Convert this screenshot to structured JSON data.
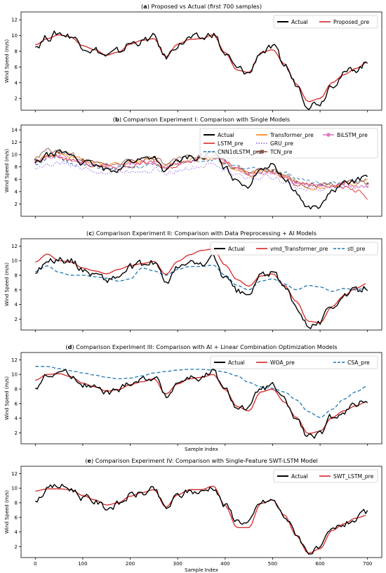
{
  "figure": {
    "xlabel": "Sample Index",
    "colors": {
      "actual": "#000000",
      "red": "#d62728",
      "blue": "#1f77b4",
      "orange": "#ff7f0e",
      "purple": "#8a5cf0",
      "brown": "#8c564b",
      "pink": "#e377c2"
    }
  },
  "chart_data": [
    {
      "type": "line",
      "title_prefix": "a",
      "title": "Proposed vs Actual (first 700 samples)",
      "xlabel": "",
      "ylabel": "Wind Speed (m/s)",
      "xlim": [
        -30,
        730
      ],
      "ylim": [
        0.5,
        13.0
      ],
      "yticks": [
        "2",
        "4",
        "6",
        "8",
        "10",
        "12"
      ],
      "legend_position": "upper right",
      "legend": [
        {
          "name": "Actual",
          "color": "#000000",
          "style": "solid"
        },
        {
          "name": "Proposed_pre",
          "color": "#d62728",
          "style": "solid"
        }
      ],
      "x": [
        0,
        25,
        50,
        75,
        100,
        125,
        150,
        175,
        200,
        225,
        250,
        275,
        300,
        325,
        350,
        375,
        400,
        425,
        450,
        475,
        500,
        525,
        550,
        575,
        600,
        625,
        650,
        675,
        700
      ],
      "series": [
        {
          "name": "Actual",
          "values": [
            8.6,
            9.8,
            10.3,
            10.0,
            8.8,
            8.2,
            7.4,
            7.8,
            9.0,
            9.3,
            9.7,
            7.2,
            8.9,
            9.6,
            9.5,
            10.3,
            7.6,
            5.7,
            5.2,
            8.0,
            8.3,
            6.2,
            3.8,
            1.4,
            1.6,
            4.0,
            5.1,
            5.8,
            6.5
          ]
        },
        {
          "name": "Proposed_pre",
          "values": [
            8.8,
            9.6,
            10.1,
            9.8,
            8.7,
            8.2,
            7.5,
            7.9,
            8.9,
            9.4,
            9.6,
            7.3,
            8.9,
            9.5,
            9.6,
            10.1,
            7.8,
            5.6,
            5.3,
            7.8,
            8.2,
            6.4,
            3.8,
            1.6,
            2.0,
            4.0,
            5.0,
            5.8,
            6.6
          ]
        }
      ]
    },
    {
      "type": "line",
      "title_prefix": "b",
      "title": "Comparison Experiment I: Comparison with Single Models",
      "xlabel": "",
      "ylabel": "Wind Speed (m/s)",
      "xlim": [
        -30,
        730
      ],
      "ylim": [
        0.0,
        14.8
      ],
      "yticks": [
        "2",
        "4",
        "6",
        "8",
        "10",
        "12",
        "14"
      ],
      "legend_position": "upper right",
      "legend": [
        {
          "name": "Actual",
          "color": "#000000",
          "style": "solid"
        },
        {
          "name": "LSTM_pre",
          "color": "#d62728",
          "style": "solid"
        },
        {
          "name": "CNN1dLSTM_pre",
          "color": "#1f77b4",
          "style": "dashed"
        },
        {
          "name": "Transformer_pre",
          "color": "#ff7f0e",
          "style": "solid"
        },
        {
          "name": "GRU_pre",
          "color": "#8a5cf0",
          "style": "dotted"
        },
        {
          "name": "TCN_pre",
          "color": "#8c564b",
          "style": "square"
        },
        {
          "name": "BiLSTM_pre",
          "color": "#e377c2",
          "style": "circle"
        }
      ],
      "x": [
        0,
        25,
        50,
        75,
        100,
        125,
        150,
        175,
        200,
        225,
        250,
        275,
        300,
        325,
        350,
        375,
        400,
        425,
        450,
        475,
        500,
        525,
        550,
        575,
        600,
        625,
        650,
        675,
        700
      ],
      "series": [
        {
          "name": "Actual",
          "values": [
            8.6,
            9.8,
            10.3,
            10.0,
            8.8,
            8.2,
            7.4,
            7.8,
            9.0,
            9.3,
            9.7,
            7.2,
            8.9,
            9.6,
            9.5,
            10.3,
            7.6,
            5.7,
            5.2,
            8.0,
            8.3,
            6.2,
            3.8,
            1.4,
            1.6,
            4.0,
            5.1,
            5.8,
            6.5
          ]
        },
        {
          "name": "LSTM_pre",
          "values": [
            8.9,
            9.5,
            9.6,
            9.2,
            8.6,
            8.3,
            7.8,
            7.8,
            8.3,
            8.6,
            8.7,
            7.6,
            8.3,
            9.2,
            9.6,
            9.8,
            8.8,
            7.6,
            7.0,
            7.3,
            7.2,
            6.2,
            5.2,
            5.0,
            5.0,
            5.0,
            4.8,
            4.2,
            3.0
          ]
        },
        {
          "name": "CNN1dLSTM_pre",
          "values": [
            8.6,
            9.4,
            9.2,
            8.8,
            8.2,
            7.9,
            7.7,
            7.6,
            7.8,
            8.0,
            8.2,
            7.9,
            8.4,
            8.9,
            9.2,
            9.3,
            8.6,
            7.8,
            7.4,
            7.5,
            7.5,
            6.9,
            6.0,
            5.6,
            5.5,
            5.6,
            5.6,
            5.7,
            5.9
          ]
        },
        {
          "name": "Transformer_pre",
          "values": [
            8.9,
            9.8,
            10.1,
            9.6,
            9.0,
            8.7,
            8.2,
            8.3,
            8.8,
            9.1,
            9.3,
            8.0,
            8.7,
            9.2,
            9.4,
            9.8,
            8.6,
            7.1,
            6.7,
            7.4,
            7.5,
            6.6,
            5.4,
            4.6,
            4.6,
            5.0,
            5.3,
            5.4,
            5.6
          ]
        },
        {
          "name": "GRU_pre",
          "values": [
            8.0,
            8.3,
            8.6,
            8.3,
            7.8,
            7.6,
            7.1,
            7.2,
            7.4,
            7.6,
            7.7,
            6.9,
            7.4,
            7.9,
            8.1,
            8.4,
            7.6,
            6.6,
            6.2,
            6.4,
            6.4,
            5.7,
            4.8,
            4.4,
            4.4,
            4.6,
            4.8,
            4.8,
            5.0
          ]
        },
        {
          "name": "TCN_pre",
          "values": [
            9.2,
            10.6,
            10.3,
            10.0,
            9.2,
            9.0,
            8.4,
            8.4,
            9.1,
            9.4,
            9.6,
            8.2,
            9.0,
            9.8,
            10.0,
            10.2,
            9.0,
            7.5,
            6.9,
            7.3,
            7.4,
            6.7,
            5.6,
            5.0,
            5.0,
            5.2,
            5.4,
            5.5,
            5.3
          ]
        },
        {
          "name": "BiLSTM_pre",
          "values": [
            8.7,
            9.6,
            9.7,
            9.3,
            8.7,
            8.4,
            8.0,
            8.0,
            8.5,
            8.8,
            8.9,
            7.9,
            8.5,
            9.4,
            9.8,
            9.9,
            8.9,
            7.5,
            6.9,
            7.0,
            7.0,
            6.3,
            5.4,
            5.0,
            5.0,
            5.2,
            5.2,
            5.0,
            4.8
          ]
        }
      ]
    },
    {
      "type": "line",
      "title_prefix": "c",
      "title": "Comparison Experiment II: Comparison with Data Preprocessing + AI Models",
      "xlabel": "",
      "ylabel": "Wind Speed (m/s)",
      "xlim": [
        -30,
        730
      ],
      "ylim": [
        0.5,
        13.0
      ],
      "yticks": [
        "2",
        "4",
        "6",
        "8",
        "10",
        "12"
      ],
      "legend_position": "upper right",
      "legend": [
        {
          "name": "Actual",
          "color": "#000000",
          "style": "solid"
        },
        {
          "name": "vmd_Transformer_pre",
          "color": "#d62728",
          "style": "solid"
        },
        {
          "name": "stl_pre",
          "color": "#1f77b4",
          "style": "dashed"
        }
      ],
      "x": [
        0,
        25,
        50,
        75,
        100,
        125,
        150,
        175,
        200,
        225,
        250,
        275,
        300,
        325,
        350,
        375,
        400,
        425,
        450,
        475,
        500,
        525,
        550,
        575,
        600,
        625,
        650,
        675,
        700
      ],
      "series": [
        {
          "name": "Actual",
          "values": [
            8.6,
            9.8,
            10.3,
            10.0,
            8.8,
            8.2,
            7.4,
            7.8,
            9.0,
            9.3,
            9.7,
            7.2,
            8.9,
            9.6,
            9.5,
            10.3,
            7.6,
            5.7,
            5.2,
            8.0,
            8.3,
            6.2,
            3.8,
            1.4,
            1.6,
            4.0,
            5.1,
            5.8,
            6.5
          ]
        },
        {
          "name": "vmd_Transformer_pre",
          "values": [
            9.8,
            10.9,
            10.0,
            9.8,
            9.0,
            8.6,
            8.2,
            8.8,
            9.3,
            9.6,
            9.9,
            8.1,
            9.9,
            10.8,
            11.4,
            11.6,
            9.4,
            7.4,
            6.5,
            7.9,
            8.2,
            6.6,
            4.4,
            1.7,
            1.5,
            3.7,
            5.2,
            6.2,
            6.9
          ]
        },
        {
          "name": "stl_pre",
          "values": [
            8.5,
            9.3,
            8.4,
            8.0,
            8.0,
            7.8,
            7.6,
            7.2,
            7.5,
            9.0,
            8.6,
            8.0,
            8.8,
            9.2,
            9.2,
            9.4,
            8.0,
            6.6,
            6.0,
            7.2,
            7.5,
            6.8,
            6.0,
            6.6,
            6.4,
            5.8,
            6.2,
            6.0,
            6.3
          ]
        }
      ]
    },
    {
      "type": "line",
      "title_prefix": "d",
      "title": "Comparison Experiment III: Comparison with AI + Linear Combination Optimization Models",
      "xlabel": "Sample Index",
      "ylabel": "Wind Speed (m/s)",
      "xlim": [
        -30,
        730
      ],
      "ylim": [
        0.5,
        13.0
      ],
      "yticks": [
        "2",
        "4",
        "6",
        "8",
        "10",
        "12"
      ],
      "legend_position": "upper right",
      "legend": [
        {
          "name": "Actual",
          "color": "#000000",
          "style": "solid"
        },
        {
          "name": "WOA_pre",
          "color": "#d62728",
          "style": "solid"
        },
        {
          "name": "CSA_pre",
          "color": "#1f77b4",
          "style": "dashed"
        }
      ],
      "x": [
        0,
        25,
        50,
        75,
        100,
        125,
        150,
        175,
        200,
        225,
        250,
        275,
        300,
        325,
        350,
        375,
        400,
        425,
        450,
        475,
        500,
        525,
        550,
        575,
        600,
        625,
        650,
        675,
        700
      ],
      "series": [
        {
          "name": "Actual",
          "values": [
            8.6,
            9.8,
            10.3,
            10.0,
            8.8,
            8.2,
            7.4,
            7.8,
            9.0,
            9.3,
            9.7,
            7.2,
            8.9,
            9.6,
            9.5,
            10.3,
            7.6,
            5.7,
            5.2,
            8.0,
            8.3,
            6.2,
            3.8,
            1.4,
            1.6,
            4.0,
            5.1,
            5.8,
            6.5
          ]
        },
        {
          "name": "WOA_pre",
          "values": [
            9.2,
            10.0,
            10.1,
            9.7,
            8.8,
            8.3,
            7.7,
            7.9,
            8.6,
            9.0,
            9.4,
            7.3,
            8.7,
            9.4,
            9.6,
            10.0,
            7.9,
            5.6,
            5.0,
            7.6,
            8.0,
            6.2,
            4.1,
            1.9,
            2.2,
            4.1,
            5.0,
            5.7,
            6.3
          ]
        },
        {
          "name": "CSA_pre",
          "values": [
            11.1,
            11.1,
            10.8,
            10.5,
            10.2,
            9.9,
            9.6,
            9.4,
            9.5,
            9.8,
            10.2,
            10.4,
            10.6,
            10.7,
            10.7,
            10.6,
            10.3,
            9.8,
            8.9,
            8.3,
            8.1,
            7.6,
            6.5,
            4.9,
            4.1,
            5.2,
            6.6,
            7.6,
            8.4
          ]
        }
      ]
    },
    {
      "type": "line",
      "title_prefix": "e",
      "title": "Comparison Experiment IV: Comparison with Single-Feature SWT-LSTM Model",
      "xlabel": "Sample Index",
      "ylabel": "Wind Speed (m/s)",
      "xlim": [
        -30,
        730
      ],
      "ylim": [
        0.5,
        13.0
      ],
      "yticks": [
        "2",
        "4",
        "6",
        "8",
        "10",
        "12"
      ],
      "xticks": [
        "0",
        "100",
        "200",
        "300",
        "400",
        "500",
        "600",
        "700"
      ],
      "legend_position": "upper right",
      "legend": [
        {
          "name": "Actual",
          "color": "#000000",
          "style": "solid"
        },
        {
          "name": "SWT_LSTM_pre",
          "color": "#d62728",
          "style": "solid"
        }
      ],
      "x": [
        0,
        25,
        50,
        75,
        100,
        125,
        150,
        175,
        200,
        225,
        250,
        275,
        300,
        325,
        350,
        375,
        400,
        425,
        450,
        475,
        500,
        525,
        550,
        575,
        600,
        625,
        650,
        675,
        700
      ],
      "series": [
        {
          "name": "Actual",
          "values": [
            8.6,
            9.8,
            10.3,
            10.0,
            8.8,
            8.2,
            7.4,
            7.8,
            9.0,
            9.3,
            9.7,
            7.2,
            8.9,
            9.6,
            9.5,
            10.3,
            7.6,
            5.7,
            5.2,
            8.0,
            8.3,
            6.2,
            3.8,
            1.4,
            1.6,
            4.0,
            5.1,
            5.8,
            6.5
          ]
        },
        {
          "name": "SWT_LSTM_pre",
          "values": [
            9.6,
            9.9,
            9.9,
            9.8,
            9.0,
            8.4,
            7.7,
            8.0,
            8.9,
            9.4,
            9.8,
            7.4,
            9.1,
            9.8,
            9.8,
            10.3,
            7.6,
            4.6,
            4.6,
            7.9,
            8.4,
            6.3,
            3.5,
            1.1,
            1.7,
            4.2,
            5.1,
            5.9,
            6.3
          ]
        }
      ]
    }
  ]
}
